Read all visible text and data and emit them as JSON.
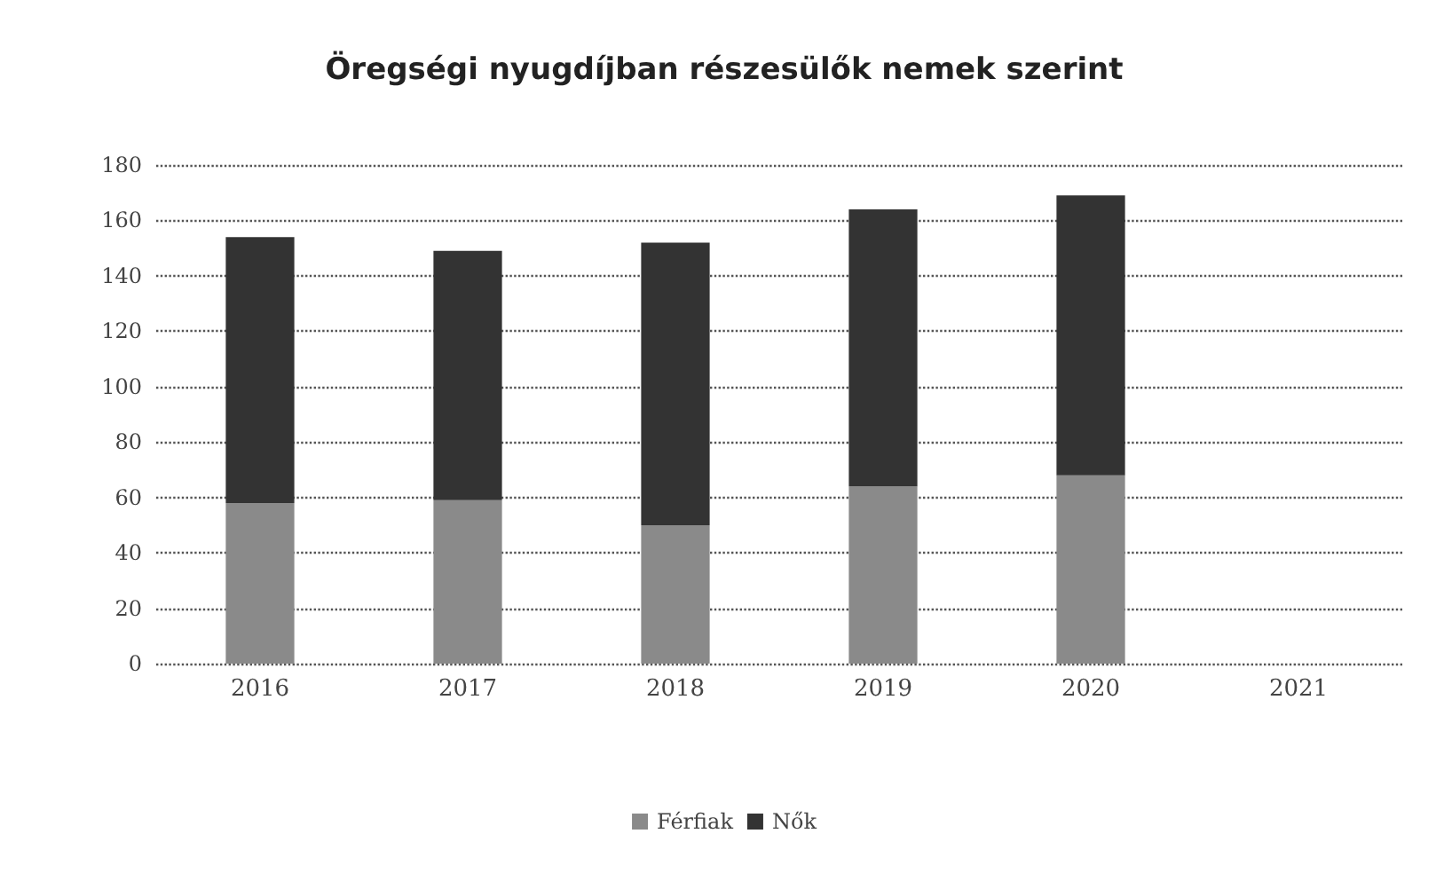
{
  "chart_data": {
    "type": "bar",
    "title": "Öregségi nyugdíjban részesülők nemek szerint",
    "categories": [
      "2016",
      "2017",
      "2018",
      "2019",
      "2020",
      "2021"
    ],
    "stacked": true,
    "series": [
      {
        "name": "Férfiak",
        "color": "#8a8a8a",
        "values": [
          58,
          59,
          50,
          64,
          68,
          null
        ]
      },
      {
        "name": "Nők",
        "color": "#333333",
        "values": [
          96,
          90,
          102,
          100,
          101,
          null
        ]
      }
    ],
    "ylim": [
      0,
      180
    ],
    "yticks": [
      0,
      20,
      40,
      60,
      80,
      100,
      120,
      140,
      160,
      180
    ],
    "grid": "y",
    "legend": "bottom"
  }
}
